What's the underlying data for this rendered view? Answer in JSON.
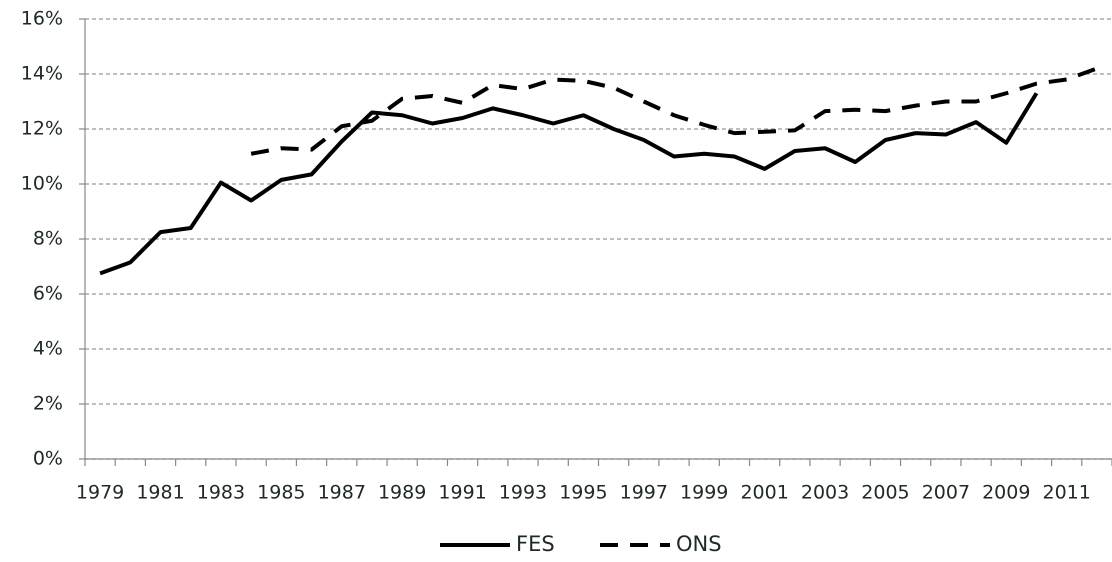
{
  "chart_data": {
    "type": "line",
    "categories": [
      "1979",
      null,
      "1981",
      null,
      "1983",
      null,
      "1985",
      null,
      "1987",
      null,
      "1989",
      null,
      "1991",
      null,
      "1993",
      null,
      "1995",
      null,
      "1997",
      null,
      "1999",
      null,
      "2001",
      null,
      "2003",
      null,
      "2005",
      null,
      "2007",
      null,
      "2009",
      null,
      "2011",
      null
    ],
    "series": [
      {
        "name": "FES",
        "color": "#000000",
        "dashed": false,
        "values": [
          6.75,
          7.15,
          8.25,
          8.4,
          10.05,
          9.4,
          10.15,
          10.35,
          11.55,
          12.6,
          12.5,
          12.2,
          12.4,
          12.75,
          12.5,
          12.2,
          12.5,
          12.0,
          11.6,
          11.0,
          11.1,
          11.0,
          10.55,
          11.2,
          11.3,
          10.8,
          11.6,
          11.85,
          11.8,
          12.25,
          11.5,
          13.3,
          null,
          null
        ]
      },
      {
        "name": "ONS",
        "color": "#000000",
        "dashed": true,
        "values": [
          null,
          null,
          null,
          null,
          null,
          11.1,
          11.3,
          11.25,
          12.1,
          12.3,
          13.1,
          13.2,
          12.95,
          13.6,
          13.45,
          13.8,
          13.75,
          13.5,
          13.0,
          12.5,
          12.15,
          11.85,
          11.9,
          11.95,
          12.65,
          12.7,
          12.65,
          12.85,
          13.0,
          13.0,
          13.3,
          13.65,
          13.8,
          14.2
        ]
      }
    ],
    "ylim": [
      0,
      16
    ],
    "yticks": [
      {
        "value": 0,
        "label": "0%"
      },
      {
        "value": 2,
        "label": "2%"
      },
      {
        "value": 4,
        "label": "4%"
      },
      {
        "value": 6,
        "label": "6%"
      },
      {
        "value": 8,
        "label": "8%"
      },
      {
        "value": 10,
        "label": "10%"
      },
      {
        "value": 12,
        "label": "12%"
      },
      {
        "value": 14,
        "label": "14%"
      },
      {
        "value": 16,
        "label": "16%"
      }
    ],
    "grid": true,
    "legend": "bottom"
  }
}
